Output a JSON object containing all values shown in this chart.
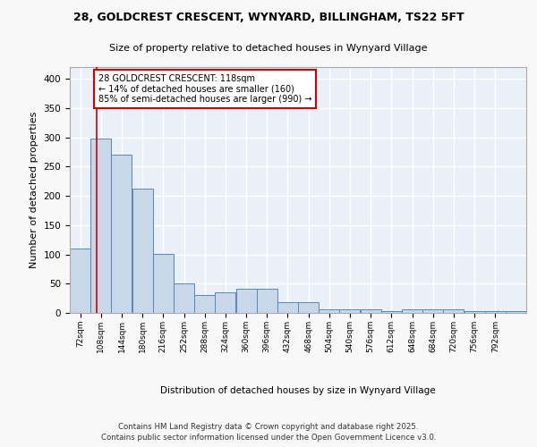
{
  "title1": "28, GOLDCREST CRESCENT, WYNYARD, BILLINGHAM, TS22 5FT",
  "title2": "Size of property relative to detached houses in Wynyard Village",
  "xlabel": "Distribution of detached houses by size in Wynyard Village",
  "ylabel": "Number of detached properties",
  "bar_values": [
    110,
    298,
    270,
    213,
    101,
    51,
    31,
    35,
    41,
    41,
    18,
    18,
    6,
    6,
    6,
    3,
    6,
    6,
    6,
    3,
    3,
    3
  ],
  "bin_edges": [
    72,
    108,
    144,
    180,
    216,
    252,
    288,
    324,
    360,
    396,
    432,
    468,
    504,
    540,
    576,
    612,
    648,
    684,
    720,
    756,
    792,
    828
  ],
  "bar_color": "#c8d8e8",
  "bar_edge_color": "#5588bb",
  "background_color": "#eaf0f8",
  "grid_color": "#ffffff",
  "fig_background": "#f8f8f8",
  "red_line_x": 118,
  "annotation_text": "28 GOLDCREST CRESCENT: 118sqm\n← 14% of detached houses are smaller (160)\n85% of semi-detached houses are larger (990) →",
  "annotation_box_color": "#ffffff",
  "annotation_box_edge": "#cc0000",
  "ylim": [
    0,
    420
  ],
  "yticks": [
    0,
    50,
    100,
    150,
    200,
    250,
    300,
    350,
    400
  ],
  "footer1": "Contains HM Land Registry data © Crown copyright and database right 2025.",
  "footer2": "Contains public sector information licensed under the Open Government Licence v3.0."
}
